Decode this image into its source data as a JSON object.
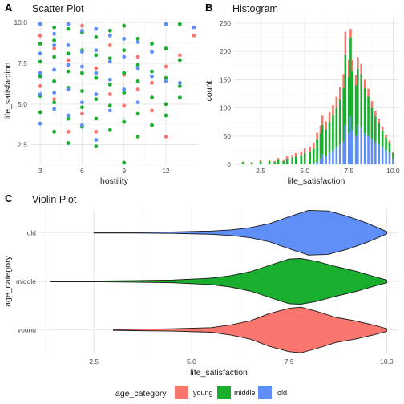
{
  "panels": {
    "a": {
      "tag": "A",
      "title": "Scatter Plot"
    },
    "b": {
      "tag": "B",
      "title": "Histogram"
    },
    "c": {
      "tag": "C",
      "title": "Violin Plot"
    }
  },
  "colors": {
    "young": "#F8766D",
    "middle": "#1AAE2E",
    "old": "#5F8EF7",
    "grid": "#e6e6e6"
  },
  "legend": {
    "title": "age_category",
    "items": [
      "young",
      "middle",
      "old"
    ]
  },
  "chart_data": [
    {
      "id": "scatter",
      "type": "scatter",
      "title": "Scatter Plot",
      "xlabel": "hostility",
      "ylabel": "life_satisfaction",
      "xlim": [
        2.3,
        14.3
      ],
      "ylim": [
        1.3,
        10.3
      ],
      "xticks": [
        3,
        6,
        9,
        12
      ],
      "yticks": [
        2.5,
        5.0,
        7.5,
        10.0
      ],
      "ytick_labels": [
        "2.5",
        "5.0",
        "7.5",
        "10.0"
      ],
      "series": [
        {
          "name": "young",
          "color": "#F8766D",
          "points": [
            [
              3,
              9.2
            ],
            [
              3,
              6.1
            ],
            [
              4,
              8.4
            ],
            [
              4,
              5.3
            ],
            [
              5,
              7.7
            ],
            [
              5,
              3.3
            ],
            [
              6,
              9.8
            ],
            [
              6,
              4.4
            ],
            [
              7,
              7.2
            ],
            [
              7,
              3.3
            ],
            [
              8,
              8.6
            ],
            [
              8,
              5.6
            ],
            [
              9,
              6.8
            ],
            [
              9,
              4.9
            ],
            [
              10,
              7.9
            ],
            [
              10,
              5.9
            ],
            [
              11,
              6.3
            ],
            [
              12,
              3.0
            ],
            [
              12,
              7.3
            ],
            [
              13,
              8.0
            ],
            [
              14,
              9.2
            ],
            [
              11,
              4.6
            ]
          ]
        },
        {
          "name": "middle",
          "color": "#1AAE2E",
          "points": [
            [
              3,
              9.9
            ],
            [
              3,
              8.7
            ],
            [
              3,
              7.6
            ],
            [
              3,
              6.7
            ],
            [
              3,
              5.5
            ],
            [
              3,
              4.5
            ],
            [
              4,
              9.7
            ],
            [
              4,
              8.9
            ],
            [
              4,
              7.9
            ],
            [
              4,
              6.4
            ],
            [
              4,
              5.1
            ],
            [
              4,
              3.3
            ],
            [
              5,
              9.6
            ],
            [
              5,
              8.1
            ],
            [
              5,
              7.0
            ],
            [
              5,
              6.0
            ],
            [
              5,
              4.1
            ],
            [
              5,
              2.6
            ],
            [
              6,
              9.4
            ],
            [
              6,
              8.3
            ],
            [
              6,
              6.9
            ],
            [
              6,
              5.8
            ],
            [
              6,
              4.8
            ],
            [
              6,
              3.6
            ],
            [
              7,
              9.1
            ],
            [
              7,
              8.0
            ],
            [
              7,
              6.6
            ],
            [
              7,
              5.3
            ],
            [
              7,
              4.1
            ],
            [
              7,
              2.4
            ],
            [
              8,
              9.5
            ],
            [
              8,
              7.8
            ],
            [
              8,
              6.2
            ],
            [
              8,
              4.9
            ],
            [
              8,
              3.4
            ],
            [
              9,
              9.8
            ],
            [
              9,
              8.3
            ],
            [
              9,
              6.9
            ],
            [
              9,
              5.7
            ],
            [
              9,
              3.9
            ],
            [
              9,
              1.4
            ],
            [
              10,
              9.0
            ],
            [
              10,
              7.4
            ],
            [
              10,
              6.4
            ],
            [
              10,
              4.4
            ],
            [
              10,
              3.0
            ],
            [
              11,
              8.7
            ],
            [
              11,
              7.0
            ],
            [
              11,
              5.4
            ],
            [
              11,
              3.7
            ],
            [
              12,
              8.4
            ],
            [
              12,
              6.6
            ],
            [
              12,
              5.0
            ],
            [
              12,
              4.3
            ],
            [
              13,
              7.7
            ],
            [
              13,
              5.4
            ],
            [
              13,
              9.9
            ],
            [
              13,
              6.1
            ]
          ]
        },
        {
          "name": "old",
          "color": "#5F8EF7",
          "points": [
            [
              3,
              9.9
            ],
            [
              3,
              8.1
            ],
            [
              3,
              6.9
            ],
            [
              3,
              5.6
            ],
            [
              3,
              3.8
            ],
            [
              4,
              9.3
            ],
            [
              4,
              8.6
            ],
            [
              4,
              7.1
            ],
            [
              4,
              5.7
            ],
            [
              4,
              4.7
            ],
            [
              5,
              9.9
            ],
            [
              5,
              8.6
            ],
            [
              5,
              7.4
            ],
            [
              5,
              5.9
            ],
            [
              5,
              4.3
            ],
            [
              6,
              9.5
            ],
            [
              6,
              8.2
            ],
            [
              6,
              7.3
            ],
            [
              6,
              5.1
            ],
            [
              6,
              3.7
            ],
            [
              7,
              9.6
            ],
            [
              7,
              8.3
            ],
            [
              7,
              6.9
            ],
            [
              7,
              5.6
            ],
            [
              7,
              2.8
            ],
            [
              8,
              9.2
            ],
            [
              8,
              7.6
            ],
            [
              8,
              6.5
            ],
            [
              8,
              4.6
            ],
            [
              9,
              9.0
            ],
            [
              9,
              7.9
            ],
            [
              9,
              5.9
            ],
            [
              10,
              8.8
            ],
            [
              10,
              7.2
            ],
            [
              10,
              5.1
            ],
            [
              11,
              8.2
            ],
            [
              11,
              6.7
            ],
            [
              12,
              9.9
            ],
            [
              12,
              6.4
            ],
            [
              13,
              6.3
            ],
            [
              14,
              9.7
            ]
          ]
        }
      ]
    },
    {
      "id": "histogram",
      "type": "bar",
      "title": "Histogram",
      "xlabel": "life_satisfaction",
      "ylabel": "count",
      "xlim": [
        1.0,
        10.3
      ],
      "ylim": [
        0,
        260
      ],
      "xticks": [
        2.5,
        5.0,
        7.5,
        10.0
      ],
      "xtick_labels": [
        "2.5",
        "5.0",
        "7.5",
        "10.0"
      ],
      "yticks": [
        0,
        50,
        100,
        150,
        200,
        250
      ],
      "bin_centers": [
        1.5,
        2.0,
        2.5,
        3.0,
        3.3,
        3.5,
        3.8,
        4.0,
        4.3,
        4.5,
        4.8,
        5.0,
        5.3,
        5.5,
        5.7,
        5.9,
        6.0,
        6.2,
        6.4,
        6.6,
        6.8,
        7.0,
        7.2,
        7.3,
        7.5,
        7.6,
        7.7,
        7.9,
        8.0,
        8.2,
        8.4,
        8.6,
        8.8,
        9.0,
        9.2,
        9.4,
        9.6,
        9.8,
        10.0
      ],
      "series": [
        {
          "name": "old",
          "color": "#5F8EF7",
          "values": [
            0,
            0,
            0,
            0,
            0,
            0,
            0,
            0,
            0,
            0,
            0,
            0,
            0,
            2,
            4,
            10,
            18,
            14,
            20,
            25,
            30,
            35,
            40,
            70,
            55,
            85,
            60,
            50,
            70,
            65,
            55,
            50,
            45,
            40,
            35,
            30,
            25,
            20,
            10
          ]
        },
        {
          "name": "middle",
          "color": "#1AAE2E",
          "values": [
            4,
            3,
            5,
            6,
            4,
            8,
            6,
            10,
            12,
            14,
            16,
            20,
            22,
            26,
            40,
            45,
            52,
            48,
            55,
            62,
            70,
            80,
            95,
            125,
            100,
            140,
            105,
            90,
            100,
            95,
            80,
            70,
            55,
            45,
            38,
            30,
            22,
            18,
            10
          ]
        },
        {
          "name": "young",
          "color": "#F8766D",
          "values": [
            1,
            1,
            2,
            2,
            2,
            3,
            3,
            4,
            5,
            6,
            7,
            8,
            9,
            10,
            12,
            14,
            16,
            14,
            17,
            18,
            20,
            22,
            25,
            40,
            30,
            15,
            20,
            18,
            20,
            18,
            15,
            14,
            12,
            10,
            8,
            7,
            6,
            4,
            2
          ]
        }
      ]
    },
    {
      "id": "violin",
      "type": "area",
      "title": "Violin Plot",
      "xlabel": "life_satisfaction",
      "ylabel": "age_category",
      "xlim": [
        1.1,
        10.3
      ],
      "xticks": [
        2.5,
        5.0,
        7.5,
        10.0
      ],
      "xtick_labels": [
        "2.5",
        "5.0",
        "7.5",
        "10.0"
      ],
      "categories": [
        "old",
        "middle",
        "young"
      ],
      "series": [
        {
          "name": "old",
          "color": "#5F8EF7",
          "min": 2.5,
          "max": 10.0,
          "x": [
            2.5,
            3.5,
            4.5,
            5.5,
            6.0,
            6.5,
            7.0,
            7.5,
            8.0,
            8.5,
            9.0,
            9.5,
            10.0
          ],
          "density": [
            0.0,
            0.01,
            0.03,
            0.07,
            0.12,
            0.22,
            0.4,
            0.7,
            0.98,
            0.95,
            0.72,
            0.42,
            0.05
          ]
        },
        {
          "name": "middle",
          "color": "#1AAE2E",
          "min": 1.4,
          "max": 10.0,
          "x": [
            1.4,
            2.5,
            3.5,
            4.5,
            5.5,
            6.0,
            6.5,
            7.0,
            7.5,
            7.8,
            8.2,
            8.7,
            9.2,
            9.7,
            10.0
          ],
          "density": [
            0.0,
            0.01,
            0.03,
            0.06,
            0.14,
            0.25,
            0.42,
            0.7,
            0.98,
            1.0,
            0.88,
            0.65,
            0.45,
            0.2,
            0.06
          ]
        },
        {
          "name": "young",
          "color": "#F8766D",
          "min": 3.0,
          "max": 10.0,
          "x": [
            3.0,
            3.5,
            4.5,
            5.5,
            6.0,
            6.5,
            7.0,
            7.5,
            7.8,
            8.2,
            8.7,
            9.2,
            9.7,
            10.0
          ],
          "density": [
            0.0,
            0.03,
            0.05,
            0.1,
            0.22,
            0.4,
            0.72,
            0.95,
            1.0,
            0.82,
            0.55,
            0.4,
            0.2,
            0.06
          ]
        }
      ]
    }
  ]
}
